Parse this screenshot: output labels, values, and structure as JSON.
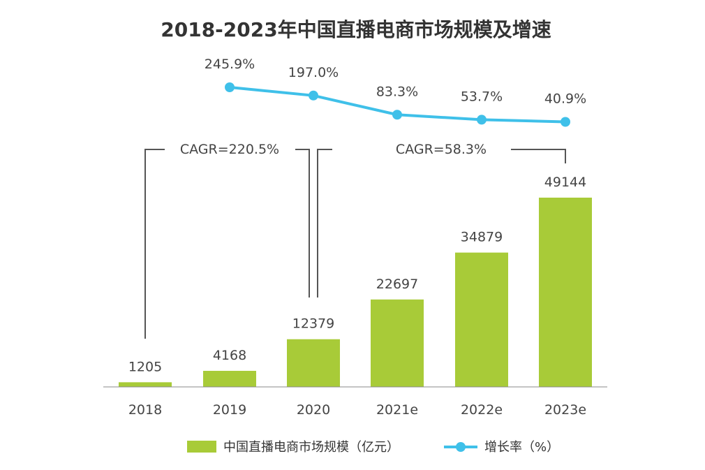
{
  "chart_data": {
    "type": "bar",
    "title": "2018-2023年中国直播电商市场规模及增速",
    "categories": [
      "2018",
      "2019",
      "2020",
      "2021e",
      "2022e",
      "2023e"
    ],
    "series": [
      {
        "name": "中国直播电商市场规模（亿元）",
        "kind": "bar",
        "values": [
          1205,
          4168,
          12379,
          22697,
          34879,
          49144
        ],
        "labels": [
          "1205",
          "4168",
          "12379",
          "22697",
          "34879",
          "49144"
        ]
      },
      {
        "name": "增长率（%）",
        "kind": "line",
        "values": [
          null,
          245.9,
          197.0,
          83.3,
          53.7,
          40.9
        ],
        "labels": [
          "",
          "245.9%",
          "197.0%",
          "83.3%",
          "53.7%",
          "40.9%"
        ]
      }
    ],
    "annotations": [
      {
        "text": "CAGR=220.5%",
        "from": "2018",
        "to": "2020"
      },
      {
        "text": "CAGR=58.3%",
        "from": "2020",
        "to": "2023e"
      }
    ],
    "ylim": [
      0,
      49144
    ],
    "legend": "bottom-center",
    "colors": {
      "bar": "#a8cb38",
      "line": "#3fc0e9",
      "axis": "#888888",
      "bracket": "#555555"
    }
  }
}
